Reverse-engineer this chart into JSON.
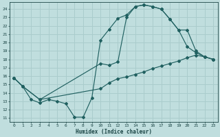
{
  "xlabel": "Humidex (Indice chaleur)",
  "xlim": [
    -0.5,
    23.5
  ],
  "ylim": [
    10.5,
    24.8
  ],
  "yticks": [
    11,
    12,
    13,
    14,
    15,
    16,
    17,
    18,
    19,
    20,
    21,
    22,
    23,
    24
  ],
  "xticks": [
    0,
    1,
    2,
    3,
    4,
    5,
    6,
    7,
    8,
    9,
    10,
    11,
    12,
    13,
    14,
    15,
    16,
    17,
    18,
    19,
    20,
    21,
    22,
    23
  ],
  "bg_color": "#c0dede",
  "grid_color": "#aacccc",
  "line_color": "#206060",
  "curve1_x": [
    0,
    1,
    2,
    3,
    4,
    5,
    6,
    7,
    8,
    9,
    10,
    11,
    12,
    13,
    14,
    15,
    16,
    17,
    18,
    19,
    20,
    21,
    22,
    23
  ],
  "curve1_y": [
    15.8,
    14.8,
    13.2,
    12.8,
    13.2,
    13.0,
    12.7,
    11.1,
    11.1,
    13.4,
    20.3,
    21.6,
    22.9,
    23.3,
    24.3,
    24.5,
    24.3,
    24.0,
    22.8,
    21.5,
    19.5,
    18.8,
    18.3,
    18.0
  ],
  "curve2_x": [
    0,
    1,
    3,
    10,
    11,
    12,
    13,
    14,
    15,
    16,
    17,
    18,
    19,
    20,
    21,
    22,
    23
  ],
  "curve2_y": [
    15.8,
    14.8,
    13.2,
    17.5,
    17.3,
    17.7,
    23.0,
    24.3,
    24.5,
    24.3,
    24.0,
    22.8,
    21.5,
    21.5,
    19.0,
    18.3,
    18.0
  ],
  "curve3_x": [
    0,
    1,
    3,
    10,
    11,
    12,
    13,
    14,
    15,
    16,
    17,
    18,
    19,
    20,
    21,
    22,
    23
  ],
  "curve3_y": [
    15.8,
    14.8,
    13.2,
    14.5,
    15.2,
    15.7,
    15.9,
    16.2,
    16.5,
    16.9,
    17.2,
    17.5,
    17.8,
    18.2,
    18.5,
    18.3,
    18.0
  ]
}
